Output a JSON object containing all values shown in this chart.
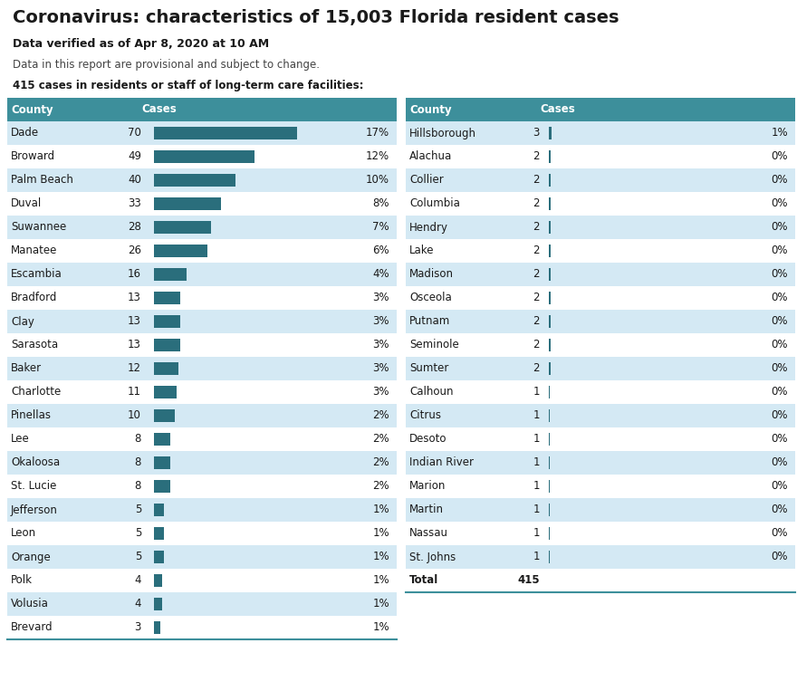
{
  "title": "Coronavirus: characteristics of 15,003 Florida resident cases",
  "subtitle": "Data verified as of Apr 8, 2020 at 10 AM",
  "note": "Data in this report are provisional and subject to change.",
  "section_label": "415 cases in residents or staff of long-term care facilities:",
  "left_counties": [
    "Dade",
    "Broward",
    "Palm Beach",
    "Duval",
    "Suwannee",
    "Manatee",
    "Escambia",
    "Bradford",
    "Clay",
    "Sarasota",
    "Baker",
    "Charlotte",
    "Pinellas",
    "Lee",
    "Okaloosa",
    "St. Lucie",
    "Jefferson",
    "Leon",
    "Orange",
    "Polk",
    "Volusia",
    "Brevard"
  ],
  "left_cases": [
    70,
    49,
    40,
    33,
    28,
    26,
    16,
    13,
    13,
    13,
    12,
    11,
    10,
    8,
    8,
    8,
    5,
    5,
    5,
    4,
    4,
    3
  ],
  "left_pcts": [
    "17%",
    "12%",
    "10%",
    "8%",
    "7%",
    "6%",
    "4%",
    "3%",
    "3%",
    "3%",
    "3%",
    "3%",
    "2%",
    "2%",
    "2%",
    "2%",
    "1%",
    "1%",
    "1%",
    "1%",
    "1%",
    "1%"
  ],
  "right_counties": [
    "Hillsborough",
    "Alachua",
    "Collier",
    "Columbia",
    "Hendry",
    "Lake",
    "Madison",
    "Osceola",
    "Putnam",
    "Seminole",
    "Sumter",
    "Calhoun",
    "Citrus",
    "Desoto",
    "Indian River",
    "Marion",
    "Martin",
    "Nassau",
    "St. Johns",
    "Total"
  ],
  "right_cases": [
    3,
    2,
    2,
    2,
    2,
    2,
    2,
    2,
    2,
    2,
    2,
    1,
    1,
    1,
    1,
    1,
    1,
    1,
    1,
    415
  ],
  "right_pcts": [
    "1%",
    "0%",
    "0%",
    "0%",
    "0%",
    "0%",
    "0%",
    "0%",
    "0%",
    "0%",
    "0%",
    "0%",
    "0%",
    "0%",
    "0%",
    "0%",
    "0%",
    "0%",
    "0%",
    ""
  ],
  "header_bg": "#3d8f9b",
  "header_text": "#ffffff",
  "row_bg_even": "#d4e9f4",
  "row_bg_odd": "#ffffff",
  "bar_color": "#2a6e7c",
  "title_color": "#1a1a1a",
  "max_bar_value": 70
}
